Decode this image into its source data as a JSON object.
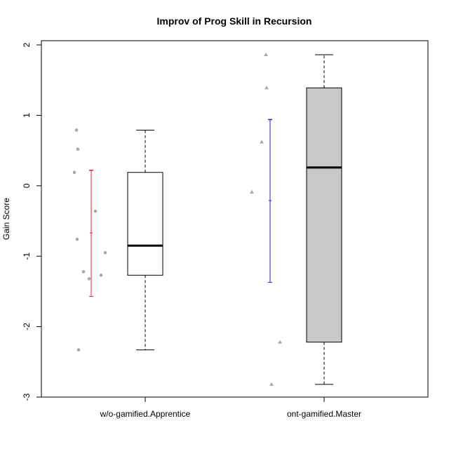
{
  "chart_data": {
    "type": "box",
    "title": "Improv of Prog Skill in Recursion",
    "xlabel": "",
    "ylabel": "Gain Score",
    "ylim": [
      -3,
      2
    ],
    "yticks": [
      -3,
      -2,
      -1,
      0,
      1,
      2
    ],
    "ytick_labels": [
      "-3",
      "-2",
      "-1",
      "0",
      "1",
      "2"
    ],
    "grid": false,
    "legend": "none",
    "categories": [
      "w/o-gamified.Apprentice",
      "ont-gamified.Master"
    ],
    "boxes": [
      {
        "name": "w/o-gamified.Apprentice",
        "whisker_low": -2.33,
        "q1": -1.27,
        "median": -0.85,
        "q3": 0.19,
        "whisker_high": 0.79,
        "fill": "#ffffff"
      },
      {
        "name": "ont-gamified.Master",
        "whisker_low": -2.82,
        "q1": -2.22,
        "median": 0.26,
        "q3": 1.39,
        "whisker_high": 1.86,
        "fill": "#c8c8c8"
      }
    ],
    "points": [
      {
        "group": "w/o-gamified.Apprentice",
        "marker": "circle",
        "values": [
          0.79,
          0.52,
          0.19,
          -0.36,
          -0.76,
          -0.95,
          -1.22,
          -1.27,
          -1.32,
          -2.33
        ]
      },
      {
        "group": "ont-gamified.Master",
        "marker": "triangle",
        "values": [
          1.86,
          1.39,
          0.62,
          -0.09,
          -2.22,
          -2.82
        ]
      }
    ],
    "error_bars": [
      {
        "group": "w/o-gamified.Apprentice",
        "mean": -0.67,
        "low": -1.57,
        "high": 0.22,
        "color": "#e8202a"
      },
      {
        "group": "ont-gamified.Master",
        "mean": -0.21,
        "low": -1.37,
        "high": 0.94,
        "color": "#2323b4"
      }
    ],
    "point_color": "#a8a8a8"
  }
}
